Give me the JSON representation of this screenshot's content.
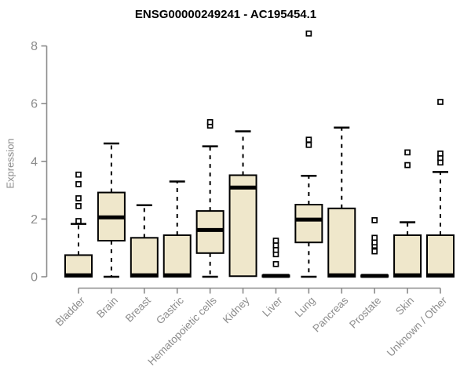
{
  "chart_data": {
    "type": "boxplot",
    "title": "ENSG00000249241 - AC195454.1",
    "ylabel": "Expression",
    "xlabel": "",
    "ylim": [
      0,
      8.5
    ],
    "yticks": [
      0,
      2,
      4,
      6,
      8
    ],
    "grid": false,
    "legend": "none",
    "categories": [
      "Bladder",
      "Brain",
      "Breast",
      "Gastric",
      "Hematopoietic cells",
      "Kidney",
      "Liver",
      "Lung",
      "Pancreas",
      "Prostate",
      "Skin",
      "Unknown / Other"
    ],
    "boxes": [
      {
        "category": "Bladder",
        "whisker_low": 0,
        "q1": 0,
        "median": 0.05,
        "q3": 0.75,
        "whisker_high": 1.83,
        "outliers": [
          1.93,
          2.45,
          2.72,
          3.21,
          3.54
        ]
      },
      {
        "category": "Brain",
        "whisker_low": 0,
        "q1": 1.25,
        "median": 2.06,
        "q3": 2.92,
        "whisker_high": 4.62,
        "outliers": []
      },
      {
        "category": "Breast",
        "whisker_low": 0,
        "q1": 0,
        "median": 0.05,
        "q3": 1.35,
        "whisker_high": 2.48,
        "outliers": []
      },
      {
        "category": "Gastric",
        "whisker_low": 0,
        "q1": 0,
        "median": 0.05,
        "q3": 1.44,
        "whisker_high": 3.3,
        "outliers": []
      },
      {
        "category": "Hematopoietic cells",
        "whisker_low": 0,
        "q1": 0.82,
        "median": 1.62,
        "q3": 2.28,
        "whisker_high": 4.52,
        "outliers": [
          5.24,
          5.36
        ]
      },
      {
        "category": "Kidney",
        "whisker_low": 0,
        "q1": 0.02,
        "median": 3.09,
        "q3": 3.52,
        "whisker_high": 5.04,
        "outliers": []
      },
      {
        "category": "Liver",
        "whisker_low": 0,
        "q1": 0,
        "median": 0.03,
        "q3": 0.05,
        "whisker_high": 0.05,
        "outliers": [
          0.44,
          0.78,
          0.93,
          1.09,
          1.25
        ]
      },
      {
        "category": "Lung",
        "whisker_low": 0,
        "q1": 1.19,
        "median": 1.98,
        "q3": 2.5,
        "whisker_high": 3.5,
        "outliers": [
          4.57,
          4.75,
          8.43
        ]
      },
      {
        "category": "Pancreas",
        "whisker_low": 0,
        "q1": 0,
        "median": 0.05,
        "q3": 2.37,
        "whisker_high": 5.17,
        "outliers": []
      },
      {
        "category": "Prostate",
        "whisker_low": 0,
        "q1": 0,
        "median": 0.03,
        "q3": 0.05,
        "whisker_high": 0.05,
        "outliers": [
          0.88,
          1.08,
          1.19,
          1.35,
          1.96
        ]
      },
      {
        "category": "Skin",
        "whisker_low": 0,
        "q1": 0,
        "median": 0.05,
        "q3": 1.44,
        "whisker_high": 1.89,
        "outliers": [
          3.87,
          4.31
        ]
      },
      {
        "category": "Unknown / Other",
        "whisker_low": 0,
        "q1": 0,
        "median": 0.05,
        "q3": 1.44,
        "whisker_high": 3.63,
        "outliers": [
          3.96,
          4.12,
          4.27,
          6.06
        ]
      }
    ],
    "colors": {
      "box_fill": "#EFE7CB",
      "box_stroke": "#000000",
      "median": "#000000",
      "whisker": "#000000",
      "outlier_stroke": "#000000",
      "outlier_fill": "#FFFFFF",
      "axis": "#8C8C8C",
      "title": "#000000",
      "background": "#FFFFFF"
    }
  }
}
